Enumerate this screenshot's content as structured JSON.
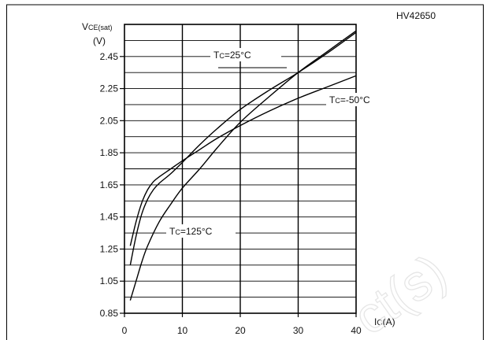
{
  "chart_data": {
    "type": "line",
    "figure_id": "HV42650",
    "ylabel_main": "V",
    "ylabel_sub": "CE(sat)",
    "yunit": "(V)",
    "xlabel_main": "I",
    "xlabel_sub": "C",
    "xunit": "(A)",
    "xlim": [
      0,
      40
    ],
    "ylim": [
      0.85,
      2.65
    ],
    "x_ticks": [
      0,
      10,
      20,
      30,
      40
    ],
    "y_ticks": [
      0.85,
      1.05,
      1.25,
      1.45,
      1.65,
      1.85,
      2.05,
      2.25,
      2.45
    ],
    "x_tick_labels": [
      "0",
      "10",
      "20",
      "30",
      "40"
    ],
    "y_tick_labels": [
      "0.85",
      "1.05",
      "1.25",
      "1.45",
      "1.65",
      "1.85",
      "2.05",
      "2.25",
      "2.45"
    ],
    "grid": true,
    "watermark": "ct(s)",
    "series": [
      {
        "name": "Tc=25°C",
        "label_main": "T",
        "label_sub": "C",
        "label_rest": "=25°C",
        "x": [
          1,
          2,
          3,
          4,
          5,
          6,
          8,
          10,
          13,
          16,
          20,
          25,
          30,
          35,
          40
        ],
        "y": [
          1.15,
          1.33,
          1.47,
          1.56,
          1.62,
          1.66,
          1.72,
          1.79,
          1.9,
          2.0,
          2.12,
          2.24,
          2.35,
          2.47,
          2.6
        ]
      },
      {
        "name": "Tc=-50°C",
        "label_main": "T",
        "label_sub": "C",
        "label_rest": "=-50°C",
        "x": [
          1,
          2,
          3,
          4,
          5,
          6,
          8,
          10,
          13,
          16,
          20,
          25,
          30,
          35,
          40
        ],
        "y": [
          1.27,
          1.42,
          1.54,
          1.62,
          1.67,
          1.7,
          1.75,
          1.8,
          1.87,
          1.94,
          2.02,
          2.11,
          2.19,
          2.26,
          2.33
        ]
      },
      {
        "name": "Tc=125°C",
        "label_main": "T",
        "label_sub": "C",
        "label_rest": "=125°C",
        "x": [
          1,
          2,
          3,
          4,
          6,
          8,
          10,
          13,
          16,
          20,
          25,
          30,
          35,
          40
        ],
        "y": [
          0.93,
          1.05,
          1.17,
          1.27,
          1.42,
          1.53,
          1.63,
          1.75,
          1.88,
          2.04,
          2.2,
          2.35,
          2.48,
          2.61
        ]
      }
    ]
  }
}
